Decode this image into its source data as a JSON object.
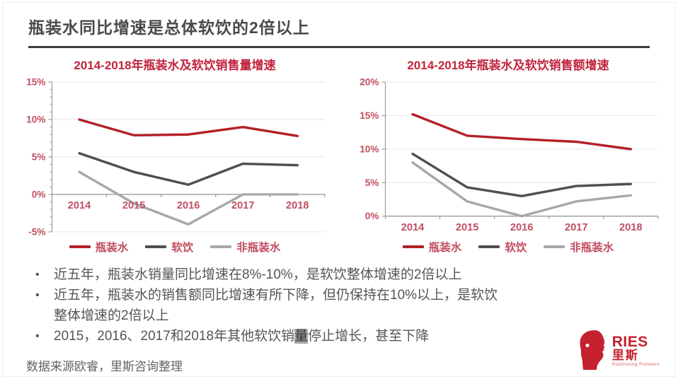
{
  "header": {
    "title": "瓶装水同比增速是总体软饮的2倍以上"
  },
  "chart_data": [
    {
      "type": "line",
      "title": "2014-2018年瓶装水及软饮销售量增速",
      "categories": [
        "2014",
        "2015",
        "2016",
        "2017",
        "2018"
      ],
      "series": [
        {
          "name": "瓶装水",
          "color": "#b41f27",
          "values": [
            10,
            7.9,
            8,
            9,
            7.8
          ]
        },
        {
          "name": "软饮",
          "color": "#4f4f4f",
          "values": [
            5.5,
            3,
            1.3,
            4.1,
            3.9
          ]
        },
        {
          "name": "非瓶装水",
          "color": "#a8a8a8",
          "values": [
            3,
            -1.2,
            -4,
            0,
            0
          ]
        }
      ],
      "ylabel": "",
      "xlabel": "",
      "ylim": [
        -5,
        15
      ],
      "ytick_step": 5,
      "minor_tick_step": 1,
      "ytick_format": "percent",
      "axis_at": 0,
      "grid": true,
      "legend_position": "bottom"
    },
    {
      "type": "line",
      "title": "2014-2018年瓶装水及软饮销售额增速",
      "categories": [
        "2014",
        "2015",
        "2016",
        "2017",
        "2018"
      ],
      "series": [
        {
          "name": "瓶装水",
          "color": "#b41f27",
          "values": [
            15.2,
            12,
            11.5,
            11.1,
            10
          ]
        },
        {
          "name": "软饮",
          "color": "#4f4f4f",
          "values": [
            9.3,
            4.3,
            3,
            4.5,
            4.8
          ]
        },
        {
          "name": "非瓶装水",
          "color": "#a8a8a8",
          "values": [
            8,
            2.2,
            0,
            2.2,
            3.1
          ]
        }
      ],
      "ylabel": "",
      "xlabel": "",
      "ylim": [
        0,
        20
      ],
      "ytick_step": 5,
      "ytick_format": "percent",
      "axis_at": 0,
      "grid": true,
      "legend_position": "bottom"
    }
  ],
  "bullets": [
    {
      "text": "近五年，瓶装水销量同比增速在8%-10%，是软饮整体增速的2倍以上"
    },
    {
      "text": "近五年，瓶装水的销售额同比增速有所下降，但仍保持在10%以上，是软饮整体增速的2倍以上"
    },
    {
      "pre": "2015，2016、2017和2018年其他软饮销",
      "highlight": "量",
      "post": "停止增长，甚至下降"
    }
  ],
  "footer": {
    "source": "数据来源欧睿，里斯咨询整理"
  },
  "logo": {
    "name": "RIES",
    "cn": "里斯",
    "tagline": "Positioning Pioneers"
  },
  "colors": {
    "accent_red": "#b41f27",
    "title_red": "#c2243e",
    "axis_label": "#c14f62",
    "dark_gray": "#4f4f4f",
    "light_gray": "#a8a8a8",
    "grid": "#eae6e6",
    "axis_line": "#9b9b9b"
  }
}
